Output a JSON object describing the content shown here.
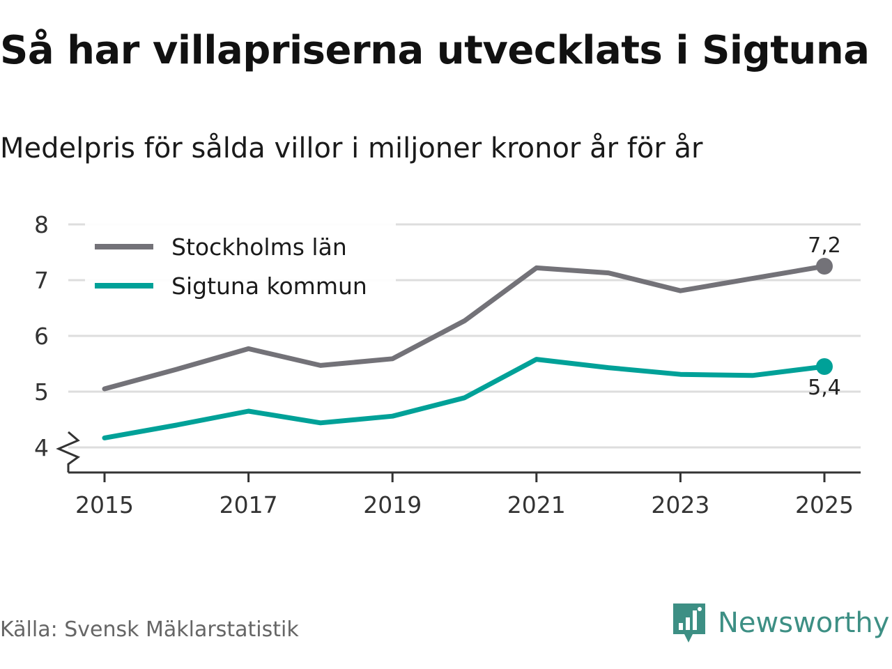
{
  "title": "Så har villapriserna utvecklats i Sigtuna",
  "subtitle": "Medelpris för sålda villor i miljoner kronor år för år",
  "source": "Källa: Svensk Mäklarstatistik",
  "brand": {
    "name": "Newsworthy",
    "icon": "newsworthy-logo-icon",
    "color": "#3d8f84"
  },
  "chart_data": {
    "type": "line",
    "title": "Så har villapriserna utvecklats i Sigtuna",
    "subtitle": "Medelpris för sålda villor i miljoner kronor år för år",
    "xlabel": "",
    "ylabel": "",
    "x": [
      2015,
      2016,
      2017,
      2018,
      2019,
      2020,
      2021,
      2022,
      2023,
      2024,
      2025
    ],
    "x_ticks": [
      "2015",
      "2017",
      "2019",
      "2021",
      "2023",
      "2025"
    ],
    "y_ticks": [
      "4",
      "5",
      "6",
      "7",
      "8"
    ],
    "ylim": [
      3.55,
      8
    ],
    "grid": true,
    "axis_break": true,
    "legend_position": "top-left",
    "series": [
      {
        "name": "Stockholms län",
        "color": "#737278",
        "values": [
          5.05,
          5.4,
          5.77,
          5.47,
          5.59,
          6.27,
          7.22,
          7.13,
          6.81,
          7.03,
          7.25
        ],
        "end_label": "7,2"
      },
      {
        "name": "Sigtuna kommun",
        "color": "#00a198",
        "values": [
          4.17,
          4.4,
          4.65,
          4.44,
          4.56,
          4.89,
          5.58,
          5.43,
          5.31,
          5.29,
          5.45
        ],
        "end_label": "5,4"
      }
    ]
  }
}
